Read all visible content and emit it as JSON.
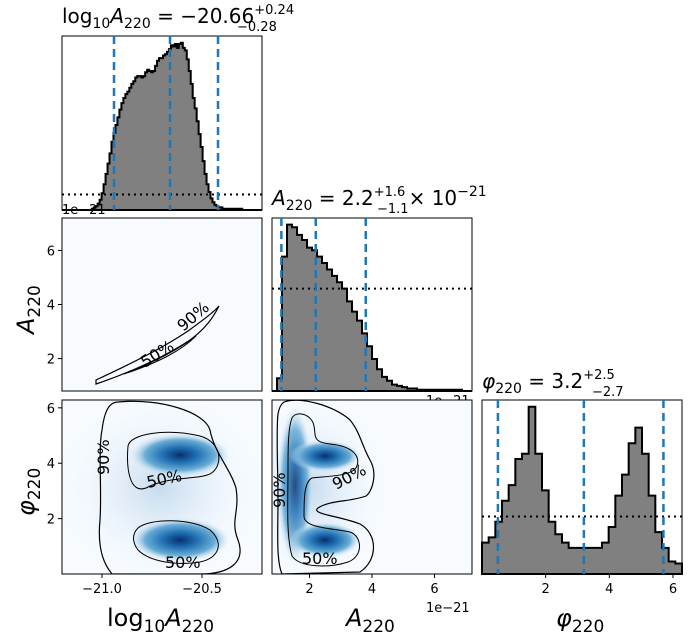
{
  "chart_data": {
    "type": "corner",
    "parameters": [
      {
        "key": "logA",
        "label": "log10A220",
        "label_main": "log",
        "label_sub1": "10",
        "label_var": "A",
        "label_sub2": "220"
      },
      {
        "key": "A",
        "label": "A220",
        "label_var": "A",
        "label_sub": "220"
      },
      {
        "key": "phi",
        "label": "φ220",
        "label_var": "φ",
        "label_sub": "220"
      }
    ],
    "titles": {
      "logA": {
        "prefix": "log",
        "sub1": "10",
        "var": "A",
        "sub2": "220",
        "eq": " = −20.66",
        "plus": "+0.24",
        "minus": "−0.28"
      },
      "A": {
        "var": "A",
        "sub": "220",
        "eq": " = 2.2",
        "plus": "+1.6",
        "minus": "−1.1",
        "suffix": "× 10",
        "exp": "−21"
      },
      "phi": {
        "var": "φ",
        "sub": "220",
        "eq": " = 3.2",
        "plus": "+2.5",
        "minus": "−2.7"
      }
    },
    "offset_text": "1e−21",
    "ticks": {
      "logA_x": {
        "values": [
          -21.0,
          -20.5
        ],
        "labels": [
          "−21.0",
          "−20.5"
        ]
      },
      "A_x": {
        "values": [
          2,
          4,
          6
        ],
        "labels": [
          "2",
          "4",
          "6"
        ]
      },
      "A_y": {
        "values": [
          2,
          4,
          6
        ],
        "labels": [
          "2",
          "4",
          "6"
        ]
      },
      "phi_x": {
        "values": [
          2,
          4,
          6
        ],
        "labels": [
          "2",
          "4",
          "6"
        ]
      },
      "phi_y": {
        "values": [
          2,
          4,
          6
        ],
        "labels": [
          "2",
          "4",
          "6"
        ]
      }
    },
    "ranges": {
      "logA": [
        -21.2,
        -20.2
      ],
      "A": [
        0.8,
        7.2
      ],
      "phi": [
        0,
        6.283
      ]
    },
    "quantiles": {
      "logA": [
        -20.94,
        -20.66,
        -20.42
      ],
      "A": [
        1.1,
        2.2,
        3.8
      ],
      "phi": [
        0.5,
        3.2,
        5.7
      ]
    },
    "histograms": {
      "logA": {
        "range": [
          -21.2,
          -20.2
        ],
        "values": [
          0,
          0,
          0,
          0,
          0,
          0,
          0,
          0,
          0,
          0,
          0,
          0,
          0,
          0,
          0,
          1,
          2,
          3,
          5,
          8,
          13,
          20,
          28,
          36,
          44,
          53,
          60,
          66,
          72,
          78,
          83,
          87,
          90,
          92,
          95,
          98,
          100,
          103,
          104,
          104,
          103,
          104,
          107,
          109,
          108,
          107,
          108,
          112,
          116,
          118,
          118,
          120,
          121,
          123,
          125,
          128,
          127,
          129,
          126,
          129,
          130,
          126,
          124,
          117,
          108,
          98,
          87,
          79,
          69,
          59,
          49,
          38,
          28,
          20,
          14,
          9,
          6,
          4,
          3,
          2,
          2,
          1,
          1,
          1,
          1,
          1,
          1,
          1,
          1,
          1,
          1,
          0,
          0,
          0,
          0,
          0,
          0,
          0,
          0,
          0,
          0
        ],
        "prior": 12
      },
      "A": {
        "range": [
          0.8,
          7.2
        ],
        "values": [
          0,
          10,
          105,
          130,
          128,
          122,
          118,
          112,
          110,
          105,
          100,
          95,
          90,
          85,
          80,
          70,
          62,
          55,
          45,
          35,
          25,
          17,
          11,
          8,
          5,
          4,
          3,
          2,
          2,
          1,
          1,
          1,
          1,
          1,
          1,
          1,
          1,
          1,
          0,
          0
        ],
        "prior": 80
      },
      "phi": {
        "range": [
          0,
          6.283
        ],
        "values": [
          30,
          35,
          50,
          70,
          85,
          110,
          115,
          160,
          115,
          80,
          50,
          38,
          30,
          25,
          25,
          25,
          25,
          25,
          30,
          45,
          75,
          95,
          125,
          140,
          115,
          75,
          40,
          25,
          12,
          10
        ],
        "prior": 55
      }
    },
    "contour_labels": [
      "50%",
      "90%"
    ]
  }
}
